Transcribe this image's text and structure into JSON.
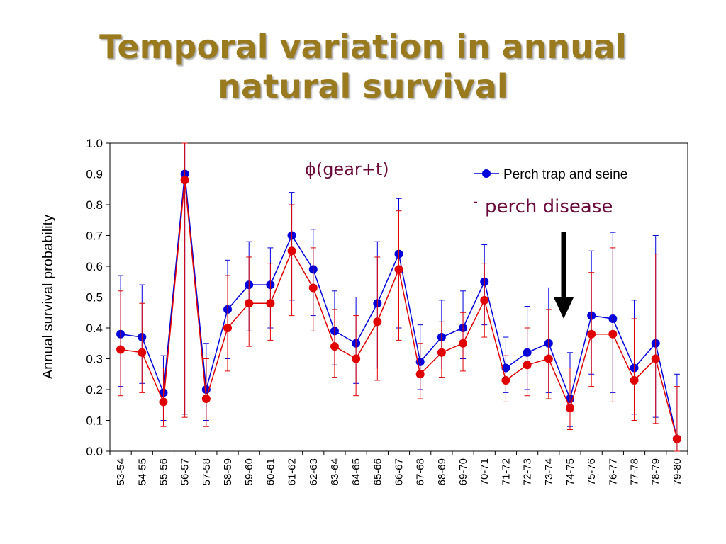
{
  "slide": {
    "title_line1": "Temporal variation in annual",
    "title_line2": "natural survival"
  },
  "chart_data": {
    "type": "line",
    "title": "",
    "xlabel": "",
    "ylabel": "Annual survival probability",
    "ylim": [
      0,
      1
    ],
    "yticks": [
      "0.0",
      "0.1",
      "0.2",
      "0.3",
      "0.4",
      "0.5",
      "0.6",
      "0.7",
      "0.8",
      "0.9",
      "1.0"
    ],
    "categories": [
      "53-54",
      "54-55",
      "55-56",
      "56-57",
      "57-58",
      "58-59",
      "59-60",
      "60-61",
      "61-62",
      "62-63",
      "63-64",
      "64-65",
      "65-66",
      "66-67",
      "67-68",
      "68-69",
      "69-70",
      "70-71",
      "71-72",
      "72-73",
      "73-74",
      "74-75",
      "75-76",
      "76-77",
      "77-78",
      "78-79",
      "79-80"
    ],
    "grid": false,
    "legend_position": "top-right",
    "series": [
      {
        "name": "Perch trap and seine",
        "color": "#0000dd",
        "values": [
          0.38,
          0.37,
          0.19,
          0.9,
          0.2,
          0.46,
          0.54,
          0.54,
          0.7,
          0.59,
          0.39,
          0.35,
          0.48,
          0.64,
          0.29,
          0.37,
          0.4,
          0.55,
          0.27,
          0.32,
          0.35,
          0.17,
          0.44,
          0.43,
          0.27,
          0.35,
          0.04
        ],
        "upper": [
          0.57,
          0.54,
          0.31,
          1.0,
          0.35,
          0.62,
          0.68,
          0.66,
          0.84,
          0.72,
          0.52,
          0.5,
          0.68,
          0.82,
          0.41,
          0.49,
          0.52,
          0.67,
          0.37,
          0.47,
          0.53,
          0.32,
          0.65,
          0.71,
          0.49,
          0.7,
          0.25
        ],
        "lower": [
          0.21,
          0.22,
          0.1,
          0.12,
          0.1,
          0.3,
          0.39,
          0.4,
          0.49,
          0.44,
          0.28,
          0.22,
          0.27,
          0.4,
          0.2,
          0.27,
          0.3,
          0.41,
          0.19,
          0.2,
          0.19,
          0.08,
          0.25,
          0.19,
          0.12,
          0.11,
          0.0
        ]
      },
      {
        "name": "",
        "color": "#e00000",
        "values": [
          0.33,
          0.32,
          0.16,
          0.88,
          0.17,
          0.4,
          0.48,
          0.48,
          0.65,
          0.53,
          0.34,
          0.3,
          0.42,
          0.59,
          0.25,
          0.32,
          0.35,
          0.49,
          0.23,
          0.28,
          0.3,
          0.14,
          0.38,
          0.38,
          0.23,
          0.3,
          0.04
        ],
        "upper": [
          0.52,
          0.48,
          0.27,
          1.0,
          0.3,
          0.57,
          0.63,
          0.61,
          0.8,
          0.66,
          0.46,
          0.44,
          0.63,
          0.78,
          0.35,
          0.42,
          0.45,
          0.61,
          0.31,
          0.4,
          0.46,
          0.27,
          0.58,
          0.66,
          0.43,
          0.64,
          0.21
        ],
        "lower": [
          0.18,
          0.19,
          0.08,
          0.11,
          0.08,
          0.26,
          0.34,
          0.36,
          0.44,
          0.39,
          0.24,
          0.18,
          0.23,
          0.36,
          0.17,
          0.24,
          0.26,
          0.37,
          0.16,
          0.18,
          0.17,
          0.07,
          0.21,
          0.16,
          0.1,
          0.09,
          0.0
        ]
      }
    ],
    "annotations": {
      "model": "ϕ(gear+t)",
      "disease": "perch disease",
      "dash": "-"
    }
  }
}
